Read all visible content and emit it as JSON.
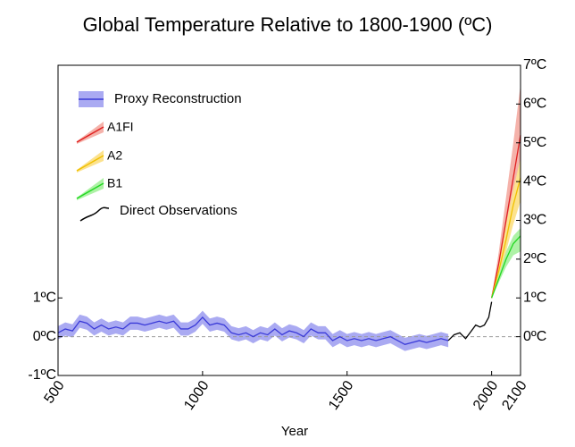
{
  "chart_data": {
    "type": "line",
    "title": "Global Temperature Relative to 1800-1900 (ºC)",
    "x_label": "Year",
    "xlim": [
      500,
      2100
    ],
    "xticks": [
      500,
      1000,
      1500,
      2000,
      2100
    ],
    "ylim": [
      -1,
      7
    ],
    "yticks": [
      {
        "value": -1,
        "label": "-1ºC"
      },
      {
        "value": 0,
        "label": "0ºC"
      },
      {
        "value": 1,
        "label": "1ºC"
      }
    ],
    "y2lim": [
      -1,
      7
    ],
    "y2ticks": [
      {
        "value": 0,
        "label": "0ºC"
      },
      {
        "value": 1,
        "label": "1ºC"
      },
      {
        "value": 2,
        "label": "2ºC"
      },
      {
        "value": 3,
        "label": "3ºC"
      },
      {
        "value": 4,
        "label": "4ºC"
      },
      {
        "value": 5,
        "label": "5ºC"
      },
      {
        "value": 6,
        "label": "6ºC"
      },
      {
        "value": 7,
        "label": "7ºC"
      }
    ],
    "legend": "upper left",
    "series": [
      {
        "name": "Proxy Reconstruction",
        "color": "#3a3ad8",
        "band_color": "#aaaaf2",
        "error": 0.17,
        "x": [
          500,
          525,
          550,
          575,
          600,
          625,
          650,
          675,
          700,
          725,
          750,
          775,
          800,
          825,
          850,
          875,
          900,
          925,
          950,
          975,
          1000,
          1025,
          1050,
          1075,
          1100,
          1125,
          1150,
          1175,
          1200,
          1225,
          1250,
          1275,
          1300,
          1325,
          1350,
          1375,
          1400,
          1425,
          1450,
          1475,
          1500,
          1525,
          1550,
          1575,
          1600,
          1625,
          1650,
          1675,
          1700,
          1725,
          1750,
          1775,
          1800,
          1825,
          1850
        ],
        "values": [
          0.1,
          0.2,
          0.15,
          0.4,
          0.35,
          0.2,
          0.3,
          0.2,
          0.25,
          0.2,
          0.35,
          0.35,
          0.3,
          0.35,
          0.4,
          0.35,
          0.4,
          0.2,
          0.2,
          0.3,
          0.5,
          0.3,
          0.35,
          0.3,
          0.1,
          0.05,
          0.1,
          0.0,
          0.1,
          0.05,
          0.2,
          0.05,
          0.15,
          0.1,
          0.0,
          0.2,
          0.1,
          0.1,
          -0.1,
          0.0,
          -0.1,
          -0.05,
          -0.1,
          -0.05,
          -0.1,
          -0.05,
          0.0,
          -0.1,
          -0.2,
          -0.15,
          -0.1,
          -0.15,
          -0.1,
          -0.05,
          -0.1
        ]
      },
      {
        "name": "A1FI",
        "color": "#e02020",
        "band_color": "#f5b2aa",
        "x": [
          2000,
          2025,
          2050,
          2075,
          2100
        ],
        "values": [
          1.0,
          1.9,
          3.0,
          4.1,
          5.2
        ],
        "lower": [
          1.0,
          1.6,
          2.5,
          3.4,
          4.3
        ],
        "upper": [
          1.0,
          2.2,
          3.6,
          5.0,
          6.5
        ]
      },
      {
        "name": "A2",
        "color": "#f0c000",
        "band_color": "#fce28e",
        "x": [
          2000,
          2025,
          2050,
          2075,
          2100
        ],
        "values": [
          1.0,
          1.7,
          2.5,
          3.4,
          4.1
        ],
        "lower": [
          1.0,
          1.5,
          2.2,
          2.9,
          3.5
        ],
        "upper": [
          1.0,
          1.9,
          2.9,
          3.8,
          4.6
        ]
      },
      {
        "name": "B1",
        "color": "#22d822",
        "band_color": "#aef2a6",
        "x": [
          2000,
          2025,
          2050,
          2075,
          2100
        ],
        "values": [
          1.0,
          1.5,
          2.0,
          2.4,
          2.6
        ],
        "lower": [
          1.0,
          1.4,
          1.8,
          2.1,
          2.2
        ],
        "upper": [
          1.0,
          1.6,
          2.2,
          2.6,
          2.8
        ]
      },
      {
        "name": "Direct Observations",
        "color": "#000000",
        "x": [
          1850,
          1870,
          1890,
          1910,
          1930,
          1945,
          1960,
          1975,
          1990,
          2000
        ],
        "values": [
          -0.1,
          0.05,
          0.1,
          -0.05,
          0.15,
          0.3,
          0.25,
          0.3,
          0.5,
          0.9
        ]
      }
    ]
  }
}
